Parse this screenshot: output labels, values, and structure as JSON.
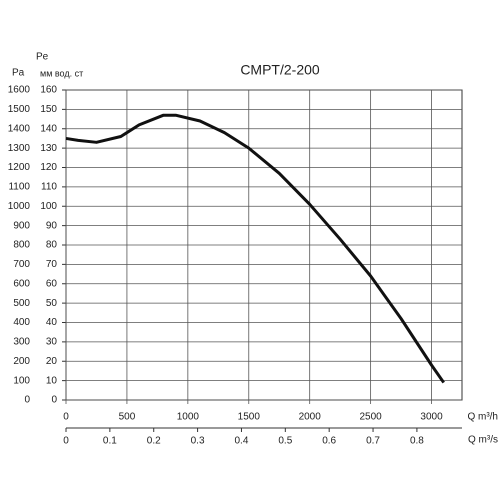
{
  "chart_data": {
    "type": "line",
    "title": "CMPT/2-200",
    "y_label": "Pa",
    "y2_label_top": "Pe",
    "y2_label": "мм вод. ст",
    "x_label": "Q m³/h",
    "x2_label": "Q m³/s",
    "x": [
      0,
      100,
      250,
      450,
      600,
      800,
      900,
      1100,
      1300,
      1500,
      1750,
      2000,
      2250,
      2500,
      2750,
      3000,
      3100
    ],
    "values": [
      1350,
      1340,
      1330,
      1360,
      1420,
      1470,
      1470,
      1440,
      1380,
      1300,
      1170,
      1010,
      830,
      640,
      420,
      180,
      90
    ],
    "color": "#111111",
    "xlim": [
      0,
      3250
    ],
    "xticks": [
      0,
      500,
      1000,
      1500,
      2000,
      2500,
      3000
    ],
    "x2lim": [
      0,
      0.9028
    ],
    "x2ticks": [
      0,
      0.1,
      0.2,
      0.3,
      0.4,
      0.5,
      0.6,
      0.7,
      0.8
    ],
    "ylim": [
      0,
      1600
    ],
    "yticks": [
      0,
      100,
      200,
      300,
      400,
      500,
      600,
      700,
      800,
      900,
      1000,
      1100,
      1200,
      1300,
      1400,
      1500,
      1600
    ],
    "y2lim": [
      0,
      160
    ],
    "y2ticks": [
      0,
      10,
      20,
      30,
      40,
      50,
      60,
      70,
      80,
      90,
      100,
      110,
      120,
      130,
      140,
      150,
      160
    ],
    "grid": true
  }
}
